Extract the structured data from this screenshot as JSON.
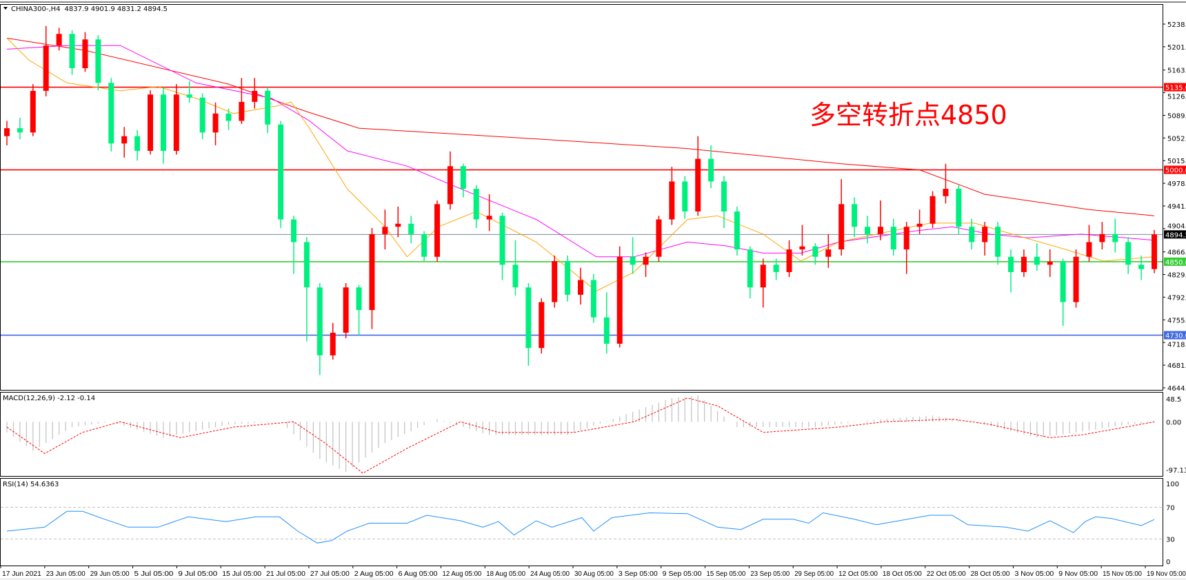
{
  "header": {
    "symbol": "CHINA300-,H4",
    "ohlc_text": "4837.9 4901.9 4831.2 4894.5"
  },
  "annotation": {
    "text": "多空转折点4850",
    "color": "#ff0000"
  },
  "colors": {
    "up_candle": "#ff0000",
    "down_candle": "#00f080",
    "ma_long": "#ff0000",
    "ma_mid": "#ff00ff",
    "ma_short": "#ffa500",
    "macd_hist": "#c0c0c0",
    "macd_signal": "#ff0000",
    "rsi": "#1e90ff"
  },
  "macd": {
    "title": "MACD(12,26,9) -2.12 -0.14",
    "axis": [
      "48.5",
      "0.00",
      "-97.13"
    ]
  },
  "rsi": {
    "title": "RSI(14) 54.6363",
    "axis": [
      "100",
      "70",
      "30",
      "0"
    ]
  },
  "price_axis": [
    "5238.0",
    "5201.0",
    "5163.0",
    "5126.0",
    "5089.0",
    "5052.0",
    "5015.0",
    "4978.0",
    "4941.0",
    "4904.0",
    "4866.0",
    "4829.0",
    "4792.0",
    "4755.0",
    "4718.0",
    "4681.0",
    "4644.0"
  ],
  "price_tags": [
    {
      "label": "5135.0",
      "value": 5135,
      "color": "#ff0000",
      "line": true
    },
    {
      "label": "5000.0",
      "value": 5000,
      "color": "#ff0000",
      "line": true
    },
    {
      "label": "4894.5",
      "value": 4894.5,
      "color": "#000000",
      "line_color": "#778899",
      "line": true
    },
    {
      "label": "4850.0",
      "value": 4850,
      "color": "#32cd32",
      "line": true
    },
    {
      "label": "4730.0",
      "value": 4730,
      "color": "#4169e1",
      "line": true
    }
  ],
  "time_axis": [
    "17 Jun 2021",
    "23 Jun 05:00",
    "29 Jun 05:00",
    "5 Jul 05:00",
    "9 Jul 05:00",
    "15 Jul 05:00",
    "21 Jul 05:00",
    "27 Jul 05:00",
    "2 Aug 05:00",
    "6 Aug 05:00",
    "12 Aug 05:00",
    "18 Aug 05:00",
    "24 Aug 05:00",
    "30 Aug 05:00",
    "3 Sep 05:00",
    "9 Sep 05:00",
    "15 Sep 05:00",
    "23 Sep 05:00",
    "29 Sep 05:00",
    "12 Oct 05:00",
    "18 Oct 05:00",
    "22 Oct 05:00",
    "28 Oct 05:00",
    "3 Nov 05:00",
    "9 Nov 05:00",
    "15 Nov 05:00",
    "19 Nov 05:00"
  ],
  "chart_data": {
    "type": "candlestick",
    "ylim": [
      4644,
      5238
    ],
    "grid": false,
    "ohlc": [
      [
        5055,
        5080,
        5040,
        5068
      ],
      [
        5068,
        5085,
        5050,
        5061
      ],
      [
        5061,
        5140,
        5055,
        5129
      ],
      [
        5129,
        5235,
        5120,
        5203
      ],
      [
        5203,
        5232,
        5195,
        5222
      ],
      [
        5222,
        5228,
        5155,
        5166
      ],
      [
        5166,
        5225,
        5160,
        5213
      ],
      [
        5213,
        5220,
        5130,
        5142
      ],
      [
        5142,
        5150,
        5030,
        5043
      ],
      [
        5043,
        5070,
        5020,
        5055
      ],
      [
        5055,
        5065,
        5015,
        5031
      ],
      [
        5031,
        5130,
        5025,
        5123
      ],
      [
        5123,
        5135,
        5010,
        5031
      ],
      [
        5031,
        5140,
        5025,
        5123
      ],
      [
        5123,
        5145,
        5110,
        5118
      ],
      [
        5118,
        5125,
        5050,
        5061
      ],
      [
        5061,
        5110,
        5040,
        5092
      ],
      [
        5092,
        5100,
        5065,
        5080
      ],
      [
        5080,
        5150,
        5075,
        5111
      ],
      [
        5111,
        5150,
        5100,
        5129
      ],
      [
        5129,
        5135,
        5060,
        5074
      ],
      [
        5074,
        5080,
        4905,
        4919
      ],
      [
        4919,
        4925,
        4830,
        4882
      ],
      [
        4882,
        4890,
        4720,
        4808
      ],
      [
        4808,
        4815,
        4665,
        4697
      ],
      [
        4697,
        4750,
        4690,
        4734
      ],
      [
        4734,
        4815,
        4725,
        4808
      ],
      [
        4808,
        4812,
        4730,
        4771
      ],
      [
        4771,
        4905,
        4740,
        4895
      ],
      [
        4895,
        4935,
        4870,
        4907
      ],
      [
        4907,
        4940,
        4890,
        4912
      ],
      [
        4912,
        4925,
        4880,
        4895
      ],
      [
        4895,
        4900,
        4850,
        4858
      ],
      [
        4858,
        4950,
        4850,
        4944
      ],
      [
        4944,
        5030,
        4935,
        5006
      ],
      [
        5006,
        5010,
        4955,
        4969
      ],
      [
        4969,
        4975,
        4905,
        4919
      ],
      [
        4919,
        4960,
        4900,
        4925
      ],
      [
        4925,
        4930,
        4820,
        4845
      ],
      [
        4845,
        4885,
        4795,
        4808
      ],
      [
        4808,
        4815,
        4680,
        4709
      ],
      [
        4709,
        4790,
        4700,
        4784
      ],
      [
        4784,
        4860,
        4775,
        4851
      ],
      [
        4851,
        4860,
        4785,
        4796
      ],
      [
        4796,
        4840,
        4780,
        4820
      ],
      [
        4820,
        4830,
        4750,
        4759
      ],
      [
        4759,
        4800,
        4700,
        4716
      ],
      [
        4716,
        4875,
        4710,
        4858
      ],
      [
        4858,
        4890,
        4830,
        4845
      ],
      [
        4845,
        4865,
        4825,
        4858
      ],
      [
        4858,
        4925,
        4850,
        4919
      ],
      [
        4919,
        5005,
        4910,
        4981
      ],
      [
        4981,
        4990,
        4920,
        4932
      ],
      [
        4932,
        5055,
        4925,
        5018
      ],
      [
        5018,
        5040,
        4970,
        4981
      ],
      [
        4981,
        4990,
        4905,
        4932
      ],
      [
        4932,
        4940,
        4860,
        4870
      ],
      [
        4870,
        4875,
        4790,
        4808
      ],
      [
        4808,
        4855,
        4775,
        4845
      ],
      [
        4845,
        4855,
        4820,
        4833
      ],
      [
        4833,
        4885,
        4825,
        4870
      ],
      [
        4870,
        4910,
        4860,
        4875
      ],
      [
        4875,
        4880,
        4845,
        4858
      ],
      [
        4858,
        4895,
        4840,
        4870
      ],
      [
        4870,
        4985,
        4860,
        4944
      ],
      [
        4944,
        4955,
        4890,
        4907
      ],
      [
        4907,
        4925,
        4880,
        4895
      ],
      [
        4895,
        4950,
        4885,
        4907
      ],
      [
        4907,
        4920,
        4860,
        4870
      ],
      [
        4870,
        4915,
        4830,
        4907
      ],
      [
        4907,
        4935,
        4895,
        4912
      ],
      [
        4912,
        4965,
        4905,
        4957
      ],
      [
        4957,
        5010,
        4945,
        4969
      ],
      [
        4969,
        4975,
        4895,
        4907
      ],
      [
        4907,
        4920,
        4870,
        4882
      ],
      [
        4882,
        4915,
        4860,
        4907
      ],
      [
        4907,
        4915,
        4845,
        4858
      ],
      [
        4858,
        4870,
        4800,
        4833
      ],
      [
        4833,
        4870,
        4825,
        4858
      ],
      [
        4858,
        4880,
        4835,
        4845
      ],
      [
        4845,
        4870,
        4825,
        4850
      ],
      [
        4850,
        4855,
        4745,
        4784
      ],
      [
        4784,
        4870,
        4775,
        4858
      ],
      [
        4858,
        4910,
        4850,
        4882
      ],
      [
        4882,
        4915,
        4870,
        4895
      ],
      [
        4895,
        4920,
        4865,
        4882
      ],
      [
        4882,
        4890,
        4830,
        4845
      ],
      [
        4845,
        4860,
        4820,
        4837.9
      ],
      [
        4837.9,
        4901.9,
        4831.2,
        4894.5
      ]
    ],
    "moving_averages": [
      {
        "color_key": "ma_long",
        "points": [
          [
            0,
            5215
          ],
          [
            6,
            5195
          ],
          [
            17,
            5140
          ],
          [
            23,
            5095
          ],
          [
            27,
            5068
          ],
          [
            41,
            5050
          ],
          [
            52,
            5035
          ],
          [
            64,
            5010
          ],
          [
            70,
            5000
          ],
          [
            75,
            4960
          ],
          [
            83,
            4935
          ],
          [
            88,
            4925
          ]
        ]
      },
      {
        "color_key": "ma_mid",
        "points": [
          [
            0,
            5197
          ],
          [
            4.6,
            5203
          ],
          [
            8.7,
            5203
          ],
          [
            14.5,
            5142
          ],
          [
            20.3,
            5117
          ],
          [
            23.2,
            5080
          ],
          [
            26.1,
            5031
          ],
          [
            30.7,
            5006
          ],
          [
            34.8,
            4969
          ],
          [
            40.6,
            4919
          ],
          [
            45.2,
            4858
          ],
          [
            48.1,
            4858
          ],
          [
            52.2,
            4882
          ],
          [
            55.1,
            4876
          ],
          [
            58,
            4864
          ],
          [
            60.9,
            4864
          ],
          [
            63.8,
            4882
          ],
          [
            69.6,
            4900
          ],
          [
            72.5,
            4907
          ],
          [
            75.4,
            4895
          ],
          [
            78.3,
            4889
          ],
          [
            82.4,
            4895
          ],
          [
            88,
            4885
          ]
        ]
      },
      {
        "color_key": "ma_short",
        "points": [
          [
            0,
            5215
          ],
          [
            1.7,
            5179
          ],
          [
            4.6,
            5142
          ],
          [
            8.7,
            5129
          ],
          [
            11.6,
            5136
          ],
          [
            14.5,
            5117
          ],
          [
            17.4,
            5092
          ],
          [
            20.9,
            5105
          ],
          [
            21.8,
            5111
          ],
          [
            23.2,
            5068
          ],
          [
            26.1,
            4969
          ],
          [
            29,
            4907
          ],
          [
            30.7,
            4858
          ],
          [
            33.1,
            4907
          ],
          [
            36,
            4932
          ],
          [
            40.6,
            4882
          ],
          [
            45.2,
            4802
          ],
          [
            48.1,
            4833
          ],
          [
            52.2,
            4919
          ],
          [
            54.5,
            4925
          ],
          [
            58,
            4895
          ],
          [
            60.9,
            4851
          ],
          [
            63.8,
            4882
          ],
          [
            66.7,
            4895
          ],
          [
            70.8,
            4913
          ],
          [
            74.2,
            4913
          ],
          [
            77.1,
            4895
          ],
          [
            81.2,
            4870
          ],
          [
            84.1,
            4851
          ],
          [
            88,
            4858
          ]
        ]
      }
    ],
    "macd": {
      "ylim": [
        -97.13,
        48.5
      ],
      "histogram": [
        [
          0,
          -20
        ],
        [
          2,
          -55
        ],
        [
          5,
          -10
        ],
        [
          8,
          0
        ],
        [
          12,
          -30
        ],
        [
          17,
          -5
        ],
        [
          21,
          0
        ],
        [
          24,
          -70
        ],
        [
          26,
          -95
        ],
        [
          29,
          -40
        ],
        [
          33,
          5
        ],
        [
          37,
          -25
        ],
        [
          43,
          -25
        ],
        [
          47,
          10
        ],
        [
          51,
          45
        ],
        [
          53,
          50
        ],
        [
          56,
          -10
        ],
        [
          62,
          -10
        ],
        [
          67,
          5
        ],
        [
          71,
          12
        ],
        [
          75,
          -5
        ],
        [
          79,
          -30
        ],
        [
          82,
          -20
        ],
        [
          86,
          -5
        ],
        [
          88,
          -2
        ]
      ],
      "signal": [
        [
          0,
          -10
        ],
        [
          2.9,
          -60
        ],
        [
          5.8,
          -20
        ],
        [
          8.7,
          0
        ],
        [
          13.3,
          -30
        ],
        [
          17.4,
          -10
        ],
        [
          22,
          0
        ],
        [
          24.4,
          -40
        ],
        [
          27.3,
          -97
        ],
        [
          30.7,
          -50
        ],
        [
          34.8,
          0
        ],
        [
          37.7,
          -20
        ],
        [
          43.5,
          -20
        ],
        [
          48.1,
          0
        ],
        [
          52.2,
          45
        ],
        [
          54.5,
          30
        ],
        [
          58,
          -20
        ],
        [
          63.8,
          -10
        ],
        [
          67.3,
          0
        ],
        [
          72.5,
          5
        ],
        [
          75.4,
          -5
        ],
        [
          80,
          -30
        ],
        [
          82.4,
          -25
        ],
        [
          85.8,
          -10
        ],
        [
          88,
          0
        ]
      ]
    },
    "rsi": {
      "ylim": [
        0,
        100
      ],
      "levels": [
        70,
        30
      ],
      "values": [
        [
          0,
          40
        ],
        [
          2.9,
          45
        ],
        [
          4.6,
          65
        ],
        [
          5.8,
          65
        ],
        [
          7.5,
          55
        ],
        [
          9.3,
          45
        ],
        [
          11.6,
          45
        ],
        [
          13.9,
          58
        ],
        [
          16.8,
          52
        ],
        [
          19.1,
          58
        ],
        [
          20.9,
          58
        ],
        [
          22.3,
          40
        ],
        [
          23.8,
          25
        ],
        [
          24.9,
          28
        ],
        [
          26.1,
          40
        ],
        [
          27.8,
          50
        ],
        [
          30.7,
          50
        ],
        [
          32.2,
          60
        ],
        [
          34.8,
          53
        ],
        [
          36.5,
          45
        ],
        [
          37.7,
          52
        ],
        [
          38.9,
          35
        ],
        [
          40.6,
          53
        ],
        [
          41.8,
          45
        ],
        [
          44.1,
          57
        ],
        [
          45,
          40
        ],
        [
          46.4,
          57
        ],
        [
          49.3,
          63
        ],
        [
          52.2,
          62
        ],
        [
          54.5,
          45
        ],
        [
          56.3,
          42
        ],
        [
          58,
          55
        ],
        [
          60.3,
          55
        ],
        [
          61.5,
          50
        ],
        [
          62.6,
          63
        ],
        [
          65,
          55
        ],
        [
          66.7,
          48
        ],
        [
          68.4,
          53
        ],
        [
          70.8,
          60
        ],
        [
          72.5,
          60
        ],
        [
          73.7,
          48
        ],
        [
          76.6,
          45
        ],
        [
          78.3,
          40
        ],
        [
          80,
          53
        ],
        [
          81.8,
          38
        ],
        [
          82.7,
          52
        ],
        [
          83.5,
          58
        ],
        [
          84.7,
          56
        ],
        [
          87,
          47
        ],
        [
          88,
          54.6
        ]
      ]
    }
  }
}
